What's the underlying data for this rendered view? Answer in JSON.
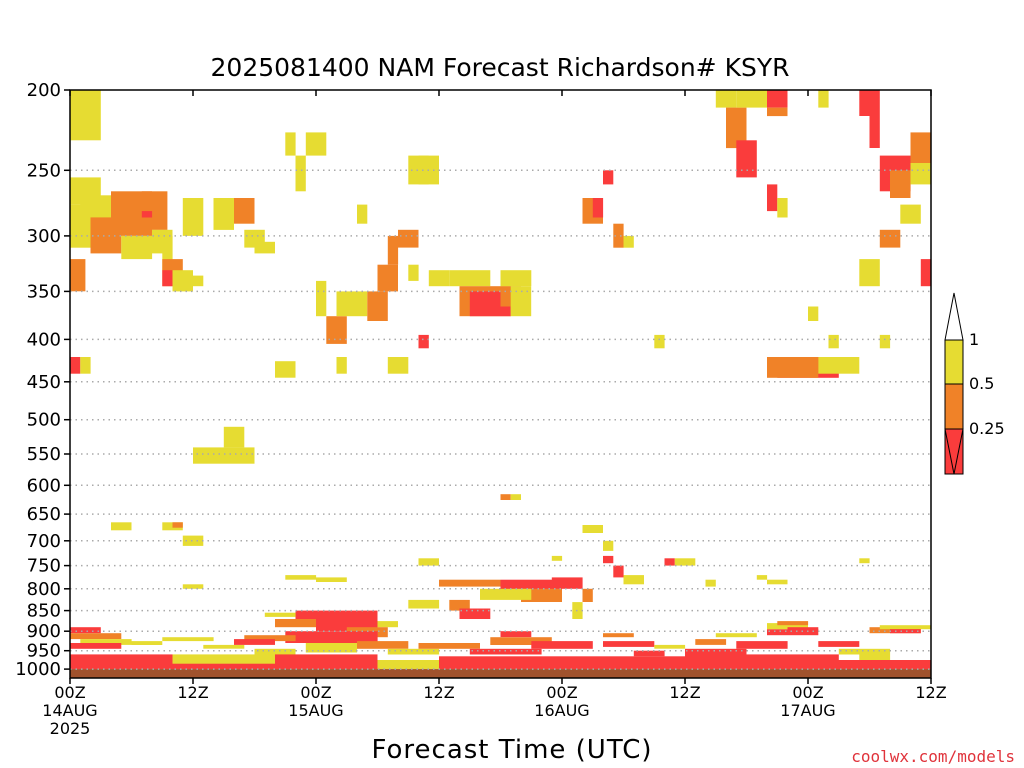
{
  "chart_data": {
    "type": "heatmap",
    "title": "2025081400 NAM Forecast Richardson# KSYR",
    "xlabel": "Forecast Time (UTC)",
    "ylabel": "",
    "credit": "coolwx.com/models",
    "x_unit": "forecast hour",
    "xlim": [
      0,
      84
    ],
    "ylim": [
      1025,
      200
    ],
    "y_scale": "log-pressure (hPa)",
    "grid": "dotted horizontal at labeled pressure levels",
    "y_ticks": [
      "200",
      "250",
      "300",
      "350",
      "400",
      "450",
      "500",
      "550",
      "600",
      "650",
      "700",
      "750",
      "800",
      "850",
      "900",
      "950",
      "1000"
    ],
    "x_ticks": [
      {
        "hour": 0,
        "lines": [
          "00Z",
          "14AUG",
          "2025"
        ]
      },
      {
        "hour": 12,
        "lines": [
          "12Z"
        ]
      },
      {
        "hour": 24,
        "lines": [
          "00Z",
          "15AUG"
        ]
      },
      {
        "hour": 36,
        "lines": [
          "12Z"
        ]
      },
      {
        "hour": 48,
        "lines": [
          "00Z",
          "16AUG"
        ]
      },
      {
        "hour": 60,
        "lines": [
          "12Z"
        ]
      },
      {
        "hour": 72,
        "lines": [
          "00Z",
          "17AUG"
        ]
      },
      {
        "hour": 84,
        "lines": [
          "12Z"
        ]
      }
    ],
    "colorbar": {
      "labels": [
        "1",
        "0.5",
        "0.25"
      ],
      "bins": [
        {
          "range": "0.5-1",
          "color": "#e6dc32"
        },
        {
          "range": "0.25-0.5",
          "color": "#f08228"
        },
        {
          "range": "<0.25",
          "color": "#fa3c3c"
        }
      ],
      "over_color": "#ffffff",
      "under_color": "#fa3c3c"
    },
    "colors": {
      "yellow": "#e6dc32",
      "orange": "#f08228",
      "red": "#fa3c3c",
      "ground": "#a0522d"
    },
    "ground_level_hpa": 1000,
    "cells": [
      [
        0,
        3,
        200,
        230,
        "y"
      ],
      [
        0,
        3,
        255,
        275,
        "y"
      ],
      [
        0,
        4,
        275,
        310,
        "y"
      ],
      [
        0,
        1.5,
        320,
        350,
        "o"
      ],
      [
        1,
        4,
        268,
        288,
        "y"
      ],
      [
        2,
        5,
        285,
        315,
        "o"
      ],
      [
        4,
        8,
        265,
        300,
        "o"
      ],
      [
        5,
        8,
        300,
        320,
        "y"
      ],
      [
        7,
        9.5,
        265,
        295,
        "o"
      ],
      [
        7,
        8,
        280,
        285,
        "r"
      ],
      [
        8,
        10,
        295,
        315,
        "y"
      ],
      [
        9,
        10,
        300,
        330,
        "y"
      ],
      [
        9,
        11,
        320,
        345,
        "o"
      ],
      [
        9,
        10,
        330,
        345,
        "r"
      ],
      [
        10,
        12,
        330,
        350,
        "y"
      ],
      [
        11,
        13,
        270,
        300,
        "y"
      ],
      [
        11,
        13,
        335,
        345,
        "y"
      ],
      [
        14,
        16,
        270,
        295,
        "y"
      ],
      [
        16,
        18,
        270,
        290,
        "o"
      ],
      [
        17,
        19,
        295,
        310,
        "y"
      ],
      [
        18,
        20,
        305,
        315,
        "y"
      ],
      [
        21,
        22,
        225,
        240,
        "y"
      ],
      [
        22,
        23,
        240,
        265,
        "y"
      ],
      [
        23,
        25,
        225,
        240,
        "y"
      ],
      [
        24,
        25,
        340,
        375,
        "y"
      ],
      [
        25,
        27,
        375,
        405,
        "o"
      ],
      [
        26,
        29,
        350,
        375,
        "y"
      ],
      [
        28,
        29,
        275,
        290,
        "y"
      ],
      [
        29,
        31,
        350,
        380,
        "o"
      ],
      [
        30,
        32,
        325,
        350,
        "o"
      ],
      [
        31,
        32,
        300,
        325,
        "o"
      ],
      [
        32,
        34,
        295,
        310,
        "o"
      ],
      [
        33,
        34,
        325,
        340,
        "y"
      ],
      [
        33,
        35,
        240,
        260,
        "y"
      ],
      [
        34,
        36,
        240,
        260,
        "y"
      ],
      [
        34,
        35,
        395,
        410,
        "r"
      ],
      [
        35,
        37,
        330,
        345,
        "y"
      ],
      [
        37,
        38,
        330,
        345,
        "y"
      ],
      [
        38,
        41,
        330,
        345,
        "y"
      ],
      [
        38,
        43,
        345,
        375,
        "o"
      ],
      [
        39,
        43,
        350,
        375,
        "r"
      ],
      [
        42,
        44,
        345,
        365,
        "o"
      ],
      [
        42,
        45,
        330,
        345,
        "y"
      ],
      [
        43,
        45,
        345,
        375,
        "y"
      ],
      [
        50,
        52,
        270,
        290,
        "o"
      ],
      [
        51,
        52,
        270,
        285,
        "r"
      ],
      [
        52,
        53,
        250,
        260,
        "r"
      ],
      [
        53,
        54,
        290,
        310,
        "o"
      ],
      [
        54,
        55,
        300,
        310,
        "y"
      ],
      [
        57,
        58,
        395,
        410,
        "y"
      ],
      [
        63,
        65,
        200,
        210,
        "y"
      ],
      [
        64,
        66,
        210,
        235,
        "o"
      ],
      [
        65,
        67,
        230,
        255,
        "r"
      ],
      [
        65,
        68,
        200,
        210,
        "y"
      ],
      [
        68,
        70,
        200,
        210,
        "r"
      ],
      [
        68,
        70,
        210,
        215,
        "o"
      ],
      [
        68,
        69,
        260,
        280,
        "r"
      ],
      [
        69,
        70,
        270,
        285,
        "y"
      ],
      [
        73,
        74,
        200,
        210,
        "y"
      ],
      [
        77,
        79,
        200,
        215,
        "r"
      ],
      [
        78,
        79,
        215,
        235,
        "r"
      ],
      [
        79,
        82,
        240,
        265,
        "r"
      ],
      [
        80,
        82,
        250,
        270,
        "o"
      ],
      [
        82,
        84,
        225,
        245,
        "o"
      ],
      [
        82,
        84,
        245,
        260,
        "y"
      ],
      [
        83,
        84,
        320,
        345,
        "r"
      ],
      [
        81,
        83,
        275,
        290,
        "y"
      ],
      [
        79,
        81,
        295,
        310,
        "o"
      ],
      [
        77,
        79,
        320,
        345,
        "y"
      ],
      [
        72,
        73,
        365,
        380,
        "y"
      ],
      [
        69,
        75,
        420,
        445,
        "r"
      ],
      [
        68,
        73,
        420,
        445,
        "o"
      ],
      [
        73,
        77,
        420,
        440,
        "y"
      ],
      [
        74,
        75,
        395,
        410,
        "y"
      ],
      [
        79,
        80,
        395,
        410,
        "y"
      ],
      [
        26,
        27,
        420,
        440,
        "y"
      ],
      [
        20,
        22,
        425,
        445,
        "y"
      ],
      [
        31,
        33,
        420,
        440,
        "y"
      ],
      [
        0,
        1,
        420,
        440,
        "r"
      ],
      [
        1,
        2,
        420,
        440,
        "y"
      ],
      [
        12,
        18,
        540,
        565,
        "y"
      ],
      [
        15,
        17,
        510,
        540,
        "y"
      ],
      [
        42,
        43,
        615,
        625,
        "o"
      ],
      [
        43,
        44,
        615,
        625,
        "y"
      ],
      [
        4,
        6,
        665,
        680,
        "y"
      ],
      [
        9,
        11,
        665,
        680,
        "y"
      ],
      [
        10,
        11,
        665,
        675,
        "o"
      ],
      [
        11,
        13,
        690,
        710,
        "y"
      ],
      [
        50,
        52,
        670,
        685,
        "y"
      ],
      [
        47,
        48,
        730,
        740,
        "y"
      ],
      [
        52,
        53,
        700,
        720,
        "y"
      ],
      [
        52,
        53,
        730,
        745,
        "r"
      ],
      [
        34,
        36,
        735,
        750,
        "y"
      ],
      [
        58,
        59,
        735,
        750,
        "r"
      ],
      [
        59,
        61,
        735,
        750,
        "y"
      ],
      [
        77,
        78,
        735,
        745,
        "y"
      ],
      [
        53,
        54,
        750,
        775,
        "r"
      ],
      [
        54,
        56,
        770,
        790,
        "y"
      ],
      [
        21,
        24,
        770,
        780,
        "y"
      ],
      [
        24,
        27,
        775,
        785,
        "y"
      ],
      [
        62,
        63,
        780,
        795,
        "y"
      ],
      [
        67,
        68,
        770,
        780,
        "y"
      ],
      [
        68,
        70,
        780,
        790,
        "y"
      ],
      [
        11,
        13,
        790,
        800,
        "y"
      ],
      [
        36,
        42,
        780,
        795,
        "o"
      ],
      [
        42,
        48,
        780,
        820,
        "r"
      ],
      [
        47,
        50,
        775,
        800,
        "r"
      ],
      [
        44,
        48,
        800,
        830,
        "o"
      ],
      [
        40,
        45,
        800,
        825,
        "y"
      ],
      [
        50,
        51,
        800,
        830,
        "o"
      ],
      [
        37,
        39,
        825,
        850,
        "o"
      ],
      [
        38,
        41,
        845,
        870,
        "r"
      ],
      [
        33,
        36,
        825,
        845,
        "y"
      ],
      [
        49,
        50,
        830,
        870,
        "y"
      ],
      [
        22,
        30,
        850,
        870,
        "r"
      ],
      [
        24,
        30,
        870,
        900,
        "r"
      ],
      [
        20,
        24,
        870,
        890,
        "o"
      ],
      [
        19,
        22,
        855,
        865,
        "y"
      ],
      [
        30,
        32,
        875,
        890,
        "y"
      ],
      [
        27,
        31,
        890,
        915,
        "o"
      ],
      [
        21,
        30,
        900,
        930,
        "r"
      ],
      [
        17,
        22,
        910,
        925,
        "o"
      ],
      [
        0,
        3,
        890,
        905,
        "r"
      ],
      [
        0,
        5,
        905,
        920,
        "o"
      ],
      [
        1,
        6,
        920,
        935,
        "y"
      ],
      [
        0,
        5,
        930,
        945,
        "r"
      ],
      [
        6,
        9,
        925,
        935,
        "y"
      ],
      [
        9,
        14,
        915,
        925,
        "y"
      ],
      [
        13,
        17,
        935,
        945,
        "y"
      ],
      [
        16,
        20,
        920,
        935,
        "r"
      ],
      [
        18,
        22,
        945,
        960,
        "y"
      ],
      [
        20,
        30,
        960,
        985,
        "r"
      ],
      [
        23,
        28,
        930,
        955,
        "y"
      ],
      [
        28,
        33,
        925,
        945,
        "o"
      ],
      [
        31,
        36,
        945,
        960,
        "y"
      ],
      [
        34,
        40,
        930,
        945,
        "o"
      ],
      [
        39,
        46,
        945,
        960,
        "r"
      ],
      [
        41,
        47,
        915,
        935,
        "o"
      ],
      [
        45,
        51,
        925,
        945,
        "r"
      ],
      [
        42,
        45,
        900,
        915,
        "r"
      ],
      [
        52,
        55,
        905,
        915,
        "o"
      ],
      [
        52,
        57,
        925,
        940,
        "r"
      ],
      [
        55,
        58,
        950,
        965,
        "r"
      ],
      [
        57,
        60,
        935,
        945,
        "y"
      ],
      [
        60,
        66,
        945,
        975,
        "r"
      ],
      [
        61,
        64,
        920,
        935,
        "o"
      ],
      [
        63,
        67,
        905,
        915,
        "y"
      ],
      [
        65,
        70,
        925,
        945,
        "r"
      ],
      [
        68,
        73,
        895,
        910,
        "r"
      ],
      [
        68,
        72,
        880,
        895,
        "y"
      ],
      [
        69,
        72,
        875,
        885,
        "o"
      ],
      [
        70,
        73,
        890,
        900,
        "r"
      ],
      [
        73,
        77,
        925,
        940,
        "r"
      ],
      [
        75,
        80,
        945,
        960,
        "y"
      ],
      [
        78,
        83,
        890,
        905,
        "o"
      ],
      [
        79,
        84,
        885,
        895,
        "y"
      ],
      [
        80,
        83,
        895,
        905,
        "r"
      ],
      [
        77,
        80,
        960,
        975,
        "y"
      ],
      [
        0,
        84,
        975,
        1000,
        "r"
      ],
      [
        0,
        10,
        960,
        1000,
        "r"
      ],
      [
        36,
        60,
        965,
        1000,
        "r"
      ],
      [
        10,
        20,
        960,
        985,
        "y"
      ],
      [
        30,
        36,
        975,
        1000,
        "y"
      ],
      [
        60,
        75,
        960,
        1000,
        "r"
      ],
      [
        75,
        84,
        985,
        1000,
        "r"
      ]
    ]
  }
}
